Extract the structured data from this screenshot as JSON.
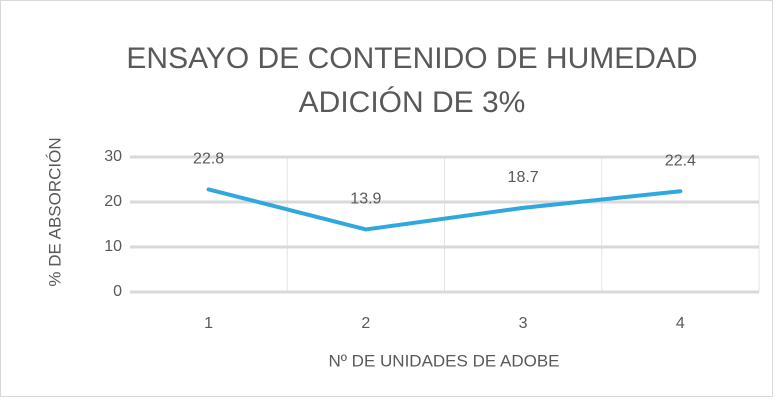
{
  "chart_data": {
    "type": "line",
    "title": [
      "ENSAYO DE CONTENIDO DE HUMEDAD",
      "ADICIÓN DE 3%"
    ],
    "x_label": "Nº DE UNIDADES DE ADOBE",
    "y_label": "% DE ABSORCIÓN",
    "categories": [
      "1",
      "2",
      "3",
      "4"
    ],
    "values": [
      22.8,
      13.9,
      18.7,
      22.4
    ],
    "color": "#2fa8df",
    "ylim": [
      0,
      30
    ],
    "yticks": [
      0,
      10,
      20,
      30
    ],
    "grid": true
  }
}
